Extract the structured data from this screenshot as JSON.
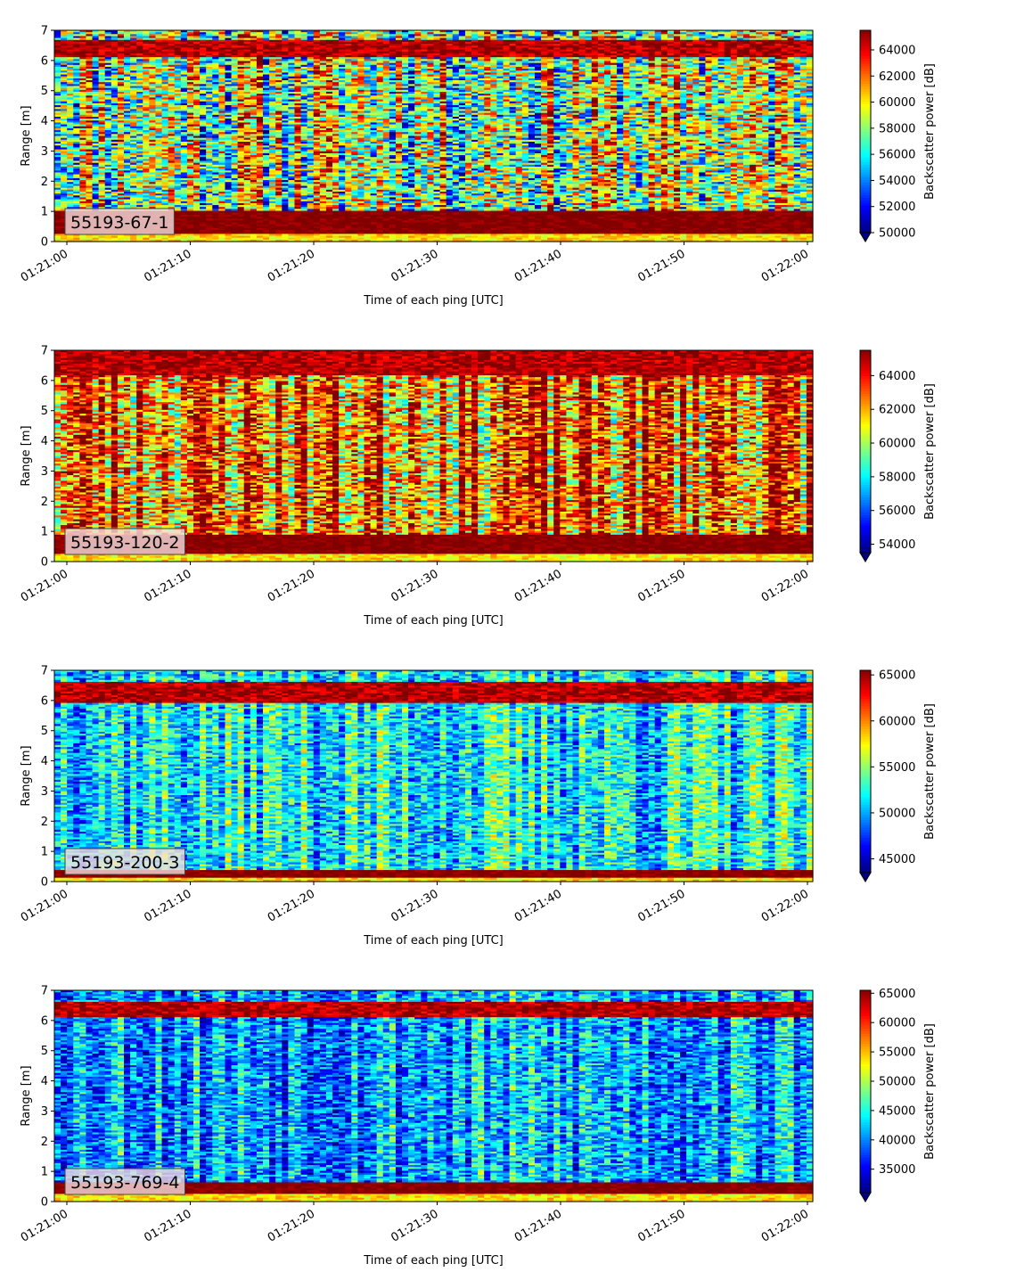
{
  "chart_data": [
    {
      "type": "heatmap",
      "panel_label": "55193-67-1",
      "xlabel": "Time of each ping [UTC]",
      "ylabel": "Range [m]",
      "colorbar_label": "Backscatter power [dB]",
      "colormap": "jet",
      "xlim": [
        "01:21:00",
        "01:22:00"
      ],
      "ylim": [
        0,
        7
      ],
      "x_ticks": [
        "01:21:00",
        "01:21:10",
        "01:21:20",
        "01:21:30",
        "01:21:40",
        "01:21:50",
        "01:22:00"
      ],
      "y_ticks": [
        "0",
        "1",
        "2",
        "3",
        "4",
        "5",
        "6",
        "7"
      ],
      "colorbar_range": [
        50000,
        65500
      ],
      "colorbar_ticks": [
        "50000",
        "52000",
        "54000",
        "56000",
        "58000",
        "60000",
        "62000",
        "64000"
      ],
      "profile": {
        "bottom_high_band": [
          0.25,
          1.0
        ],
        "top_high_band": [
          6.1,
          6.7
        ],
        "mid_level": 0.55,
        "noise": 0.4,
        "seed": 11
      }
    },
    {
      "type": "heatmap",
      "panel_label": "55193-120-2",
      "xlabel": "Time of each ping [UTC]",
      "ylabel": "Range [m]",
      "colorbar_label": "Backscatter power [dB]",
      "colormap": "jet",
      "xlim": [
        "01:21:00",
        "01:22:00"
      ],
      "ylim": [
        0,
        7
      ],
      "x_ticks": [
        "01:21:00",
        "01:21:10",
        "01:21:20",
        "01:21:30",
        "01:21:40",
        "01:21:50",
        "01:22:00"
      ],
      "y_ticks": [
        "0",
        "1",
        "2",
        "3",
        "4",
        "5",
        "6",
        "7"
      ],
      "colorbar_range": [
        53500,
        65500
      ],
      "colorbar_ticks": [
        "54000",
        "56000",
        "58000",
        "60000",
        "62000",
        "64000"
      ],
      "profile": {
        "bottom_high_band": [
          0.25,
          0.9
        ],
        "top_high_band": [
          6.2,
          7.0
        ],
        "mid_level": 0.78,
        "noise": 0.35,
        "seed": 23
      }
    },
    {
      "type": "heatmap",
      "panel_label": "55193-200-3",
      "xlabel": "Time of each ping [UTC]",
      "ylabel": "Range [m]",
      "colorbar_label": "Backscatter power [dB]",
      "colormap": "jet",
      "xlim": [
        "01:21:00",
        "01:22:00"
      ],
      "ylim": [
        0,
        7
      ],
      "x_ticks": [
        "01:21:00",
        "01:21:10",
        "01:21:20",
        "01:21:30",
        "01:21:40",
        "01:21:50",
        "01:22:00"
      ],
      "y_ticks": [
        "0",
        "1",
        "2",
        "3",
        "4",
        "5",
        "6",
        "7"
      ],
      "colorbar_range": [
        43500,
        65500
      ],
      "colorbar_ticks": [
        "45000",
        "50000",
        "55000",
        "60000",
        "65000"
      ],
      "profile": {
        "bottom_high_band": [
          0.1,
          0.4
        ],
        "top_high_band": [
          5.9,
          6.6
        ],
        "mid_level": 0.38,
        "noise": 0.22,
        "seed": 37
      }
    },
    {
      "type": "heatmap",
      "panel_label": "55193-769-4",
      "xlabel": "Time of each ping [UTC]",
      "ylabel": "Range [m]",
      "colorbar_label": "Backscatter power [dB]",
      "colormap": "jet",
      "xlim": [
        "01:21:00",
        "01:22:00"
      ],
      "ylim": [
        0,
        7
      ],
      "x_ticks": [
        "01:21:00",
        "01:21:10",
        "01:21:20",
        "01:21:30",
        "01:21:40",
        "01:21:50",
        "01:22:00"
      ],
      "y_ticks": [
        "0",
        "1",
        "2",
        "3",
        "4",
        "5",
        "6",
        "7"
      ],
      "colorbar_range": [
        31000,
        65500
      ],
      "colorbar_ticks": [
        "35000",
        "40000",
        "45000",
        "50000",
        "55000",
        "60000",
        "65000"
      ],
      "profile": {
        "bottom_high_band": [
          0.25,
          0.65
        ],
        "top_high_band": [
          6.1,
          6.6
        ],
        "mid_level": 0.3,
        "noise": 0.22,
        "seed": 53
      }
    }
  ]
}
